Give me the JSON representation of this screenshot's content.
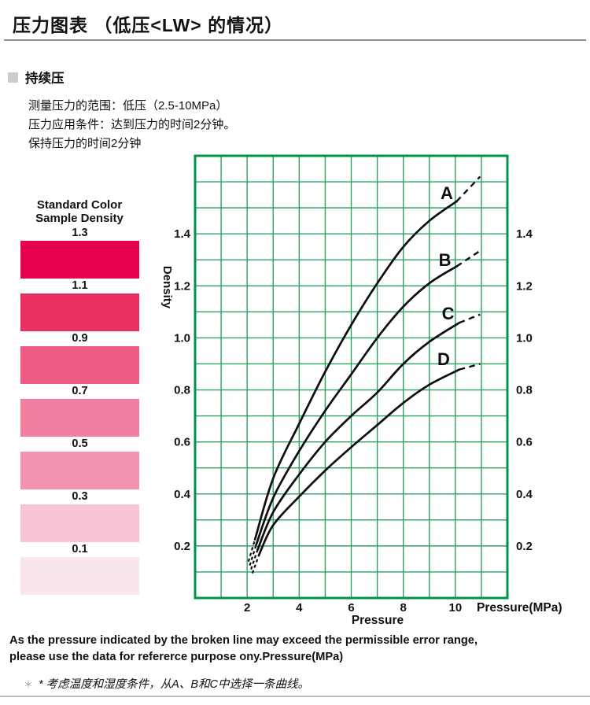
{
  "page": {
    "title": "压力图表 （低压<LW> 的情况）",
    "section_label": "持续压",
    "conditions": [
      "测量压力的范围：低压（2.5-10MPa）",
      "压力应用条件：达到压力的时间2分钟。",
      "保持压力的时间2分钟"
    ],
    "footnote_en_line1": "As the pressure indicated by the broken line may exceed the permissible error range,",
    "footnote_en_line2": "please use the data for refererce purpose ony.Pressure(MPa)",
    "footnote_cn_marker": "＊",
    "footnote_cn": "* 考虑温度和湿度条件，从A、B和C中选择一条曲线。"
  },
  "legend": {
    "title_line1": "Standard Color",
    "title_line2": "Sample Density",
    "swatches": [
      {
        "label": "1.3",
        "color": "#e80050"
      },
      {
        "label": "1.1",
        "color": "#ea2f63"
      },
      {
        "label": "0.9",
        "color": "#ee5c86"
      },
      {
        "label": "0.7",
        "color": "#f07fa0"
      },
      {
        "label": "0.5",
        "color": "#f393b0"
      },
      {
        "label": "0.3",
        "color": "#f9c5d5"
      },
      {
        "label": "0.1",
        "color": "#fce6ed"
      }
    ]
  },
  "chart_data": {
    "type": "line",
    "title": "",
    "xlabel": "Pressure",
    "x_unit_label": "Pressure(MPa)",
    "ylabel": "Density",
    "xlim": [
      0,
      12
    ],
    "ylim": [
      0,
      1.7
    ],
    "x_grid_step": 1,
    "y_grid_step": 0.1,
    "grid": true,
    "x_ticks": [
      "2",
      "4",
      "6",
      "8",
      "10"
    ],
    "y_ticks": [
      "1.4",
      "1.2",
      "1.0",
      "0.8",
      "0.6",
      "0.4",
      "0.2"
    ],
    "y_ticks_sides": "both",
    "grid_color": "#2da160",
    "border_color": "#009444",
    "curve_color": "#0d0d0d",
    "note": "dashed segments at both curve ends indicate values beyond permissible error range",
    "series": [
      {
        "name": "A",
        "label_pos": [
          9.67,
          1.558
        ],
        "pre_dash": [
          [
            2.05,
            0.14
          ],
          [
            2.3,
            0.225
          ]
        ],
        "solid": [
          [
            2.3,
            0.225
          ],
          [
            3,
            0.46
          ],
          [
            4,
            0.67
          ],
          [
            5,
            0.87
          ],
          [
            6,
            1.05
          ],
          [
            7,
            1.21
          ],
          [
            8,
            1.35
          ],
          [
            9,
            1.45
          ],
          [
            10.05,
            1.525
          ]
        ],
        "post_dash": [
          [
            10.05,
            1.525
          ],
          [
            10.95,
            1.62
          ]
        ]
      },
      {
        "name": "B",
        "label_pos": [
          9.6,
          1.3
        ],
        "pre_dash": [
          [
            2.1,
            0.125
          ],
          [
            2.35,
            0.205
          ]
        ],
        "solid": [
          [
            2.35,
            0.205
          ],
          [
            3,
            0.385
          ],
          [
            4,
            0.565
          ],
          [
            5,
            0.72
          ],
          [
            6,
            0.86
          ],
          [
            7,
            1.0
          ],
          [
            8,
            1.12
          ],
          [
            9,
            1.21
          ],
          [
            10.05,
            1.275
          ]
        ],
        "post_dash": [
          [
            10.05,
            1.275
          ],
          [
            10.95,
            1.335
          ]
        ]
      },
      {
        "name": "C",
        "label_pos": [
          9.72,
          1.095
        ],
        "pre_dash": [
          [
            2.15,
            0.11
          ],
          [
            2.4,
            0.185
          ]
        ],
        "solid": [
          [
            2.4,
            0.185
          ],
          [
            3,
            0.33
          ],
          [
            4,
            0.475
          ],
          [
            5,
            0.6
          ],
          [
            6,
            0.7
          ],
          [
            7,
            0.79
          ],
          [
            8,
            0.9
          ],
          [
            9,
            0.985
          ],
          [
            10.15,
            1.058
          ]
        ],
        "post_dash": [
          [
            10.15,
            1.058
          ],
          [
            10.95,
            1.09
          ]
        ]
      },
      {
        "name": "D",
        "label_pos": [
          9.55,
          0.92
        ],
        "pre_dash": [
          [
            2.2,
            0.095
          ],
          [
            2.45,
            0.165
          ]
        ],
        "solid": [
          [
            2.45,
            0.165
          ],
          [
            3,
            0.28
          ],
          [
            4,
            0.39
          ],
          [
            5,
            0.49
          ],
          [
            6,
            0.58
          ],
          [
            7,
            0.665
          ],
          [
            8,
            0.75
          ],
          [
            9,
            0.82
          ],
          [
            10.15,
            0.878
          ]
        ],
        "post_dash": [
          [
            10.15,
            0.878
          ],
          [
            10.95,
            0.9
          ]
        ]
      }
    ]
  }
}
